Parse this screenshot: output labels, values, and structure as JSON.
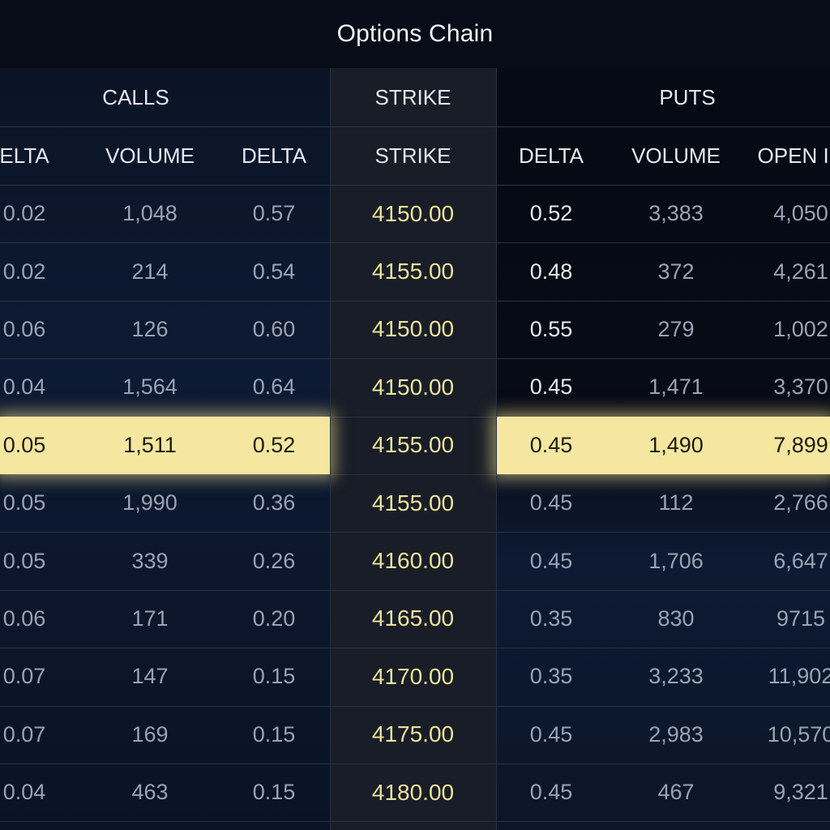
{
  "title": "Options Chain",
  "groups": {
    "calls": "CALLS",
    "strike": "STRIKE",
    "puts": "PUTS"
  },
  "headers": {
    "c1": "ELTA",
    "c2": "VOLUME",
    "c3": "DELTA",
    "strike": "STRIKE",
    "p1": "DELTA",
    "p2": "VOLUME",
    "p3": "OPEN IN"
  },
  "rows": [
    {
      "c1": "0.02",
      "c2": "1,048",
      "c3": "0.57",
      "strike": "4150.00",
      "p1": "0.52",
      "p2": "3,383",
      "p3": "4,050"
    },
    {
      "c1": "0.02",
      "c2": "214",
      "c3": "0.54",
      "strike": "4155.00",
      "p1": "0.48",
      "p2": "372",
      "p3": "4,261"
    },
    {
      "c1": "0.06",
      "c2": "126",
      "c3": "0.60",
      "strike": "4150.00",
      "p1": "0.55",
      "p2": "279",
      "p3": "1,002"
    },
    {
      "c1": "0.04",
      "c2": "1,564",
      "c3": "0.64",
      "strike": "4150.00",
      "p1": "0.45",
      "p2": "1,471",
      "p3": "3,370"
    },
    {
      "c1": "0.05",
      "c2": "1,511",
      "c3": "0.52",
      "strike": "4155.00",
      "p1": "0.45",
      "p2": "1,490",
      "p3": "7,899"
    },
    {
      "c1": "0.05",
      "c2": "1,990",
      "c3": "0.36",
      "strike": "4155.00",
      "p1": "0.45",
      "p2": "112",
      "p3": "2,766"
    },
    {
      "c1": "0.05",
      "c2": "339",
      "c3": "0.26",
      "strike": "4160.00",
      "p1": "0.45",
      "p2": "1,706",
      "p3": "6,647"
    },
    {
      "c1": "0.06",
      "c2": "171",
      "c3": "0.20",
      "strike": "4165.00",
      "p1": "0.35",
      "p2": "830",
      "p3": "9715"
    },
    {
      "c1": "0.07",
      "c2": "147",
      "c3": "0.15",
      "strike": "4170.00",
      "p1": "0.35",
      "p2": "3,233",
      "p3": "11,902"
    },
    {
      "c1": "0.07",
      "c2": "169",
      "c3": "0.15",
      "strike": "4175.00",
      "p1": "0.45",
      "p2": "2,983",
      "p3": "10,570"
    },
    {
      "c1": "0.04",
      "c2": "463",
      "c3": "0.15",
      "strike": "4180.00",
      "p1": "0.45",
      "p2": "467",
      "p3": "9,321"
    }
  ],
  "highlighted_row": 4,
  "colors": {
    "background": "#070b16",
    "strike_text": "#eee39a",
    "highlight": "#f5e7a0",
    "calls_panel": "#0d1a33",
    "strike_panel": "#181d27"
  }
}
